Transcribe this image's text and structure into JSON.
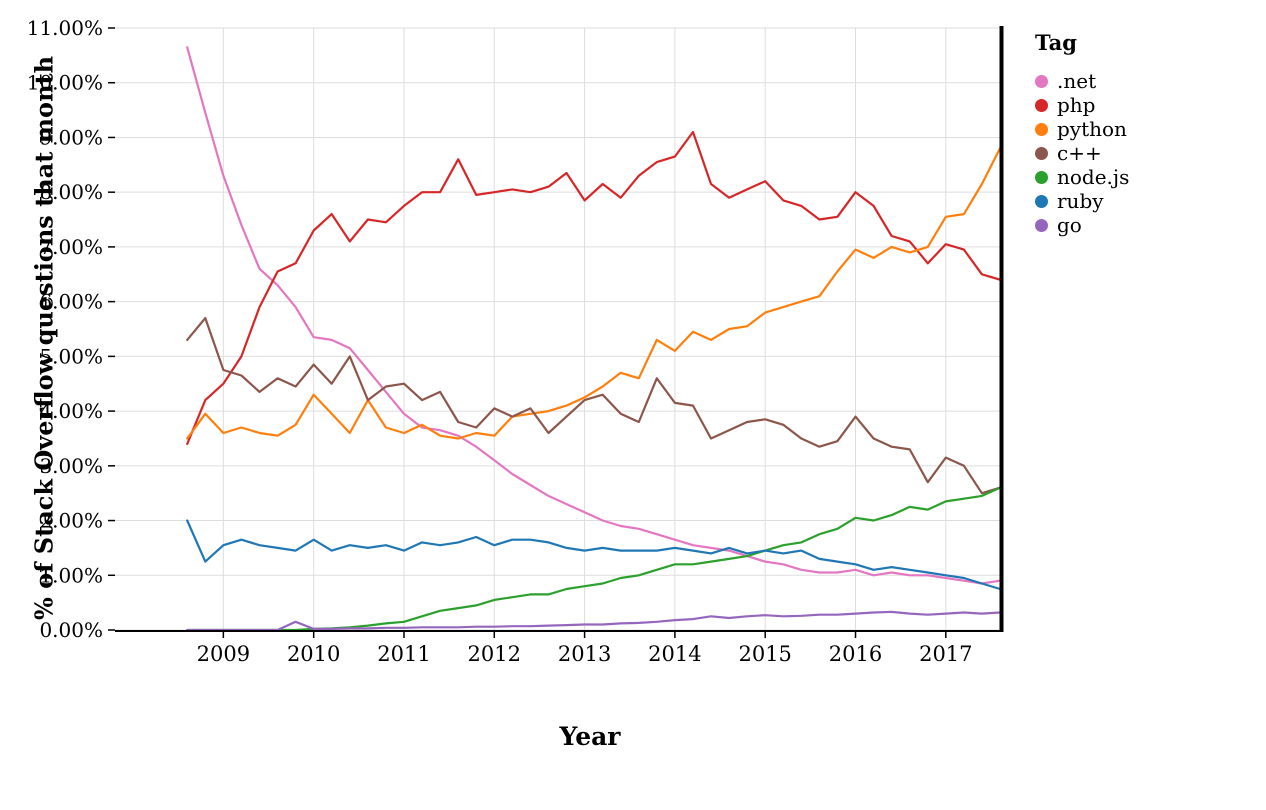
{
  "chart_data": {
    "type": "line",
    "title": "",
    "xlabel": "Year",
    "ylabel": "% of Stack Overflow questions that month",
    "legend_title": "Tag",
    "legend_position": "top-right",
    "grid": true,
    "xlim": [
      2007.8,
      2017.6
    ],
    "ylim": [
      0,
      11
    ],
    "x_ticks": [
      2009,
      2010,
      2011,
      2012,
      2013,
      2014,
      2015,
      2016,
      2017
    ],
    "y_ticks": [
      0,
      1,
      2,
      3,
      4,
      5,
      6,
      7,
      8,
      9,
      10,
      11
    ],
    "y_tick_format": "percent-2dp",
    "x": [
      2008.6,
      2008.8,
      2009.0,
      2009.2,
      2009.4,
      2009.6,
      2009.8,
      2010.0,
      2010.2,
      2010.4,
      2010.6,
      2010.8,
      2011.0,
      2011.2,
      2011.4,
      2011.6,
      2011.8,
      2012.0,
      2012.2,
      2012.4,
      2012.6,
      2012.8,
      2013.0,
      2013.2,
      2013.4,
      2013.6,
      2013.8,
      2014.0,
      2014.2,
      2014.4,
      2014.6,
      2014.8,
      2015.0,
      2015.2,
      2015.4,
      2015.6,
      2015.8,
      2016.0,
      2016.2,
      2016.4,
      2016.6,
      2016.8,
      2017.0,
      2017.2,
      2017.4,
      2017.6
    ],
    "series": [
      {
        "name": ".net",
        "color": "#e377c2",
        "values": [
          10.65,
          9.45,
          8.3,
          7.4,
          6.6,
          6.3,
          5.9,
          5.35,
          5.3,
          5.15,
          4.75,
          4.35,
          3.95,
          3.7,
          3.65,
          3.55,
          3.35,
          3.1,
          2.85,
          2.65,
          2.45,
          2.3,
          2.15,
          2.0,
          1.9,
          1.85,
          1.75,
          1.65,
          1.55,
          1.5,
          1.45,
          1.35,
          1.25,
          1.2,
          1.1,
          1.05,
          1.05,
          1.1,
          1.0,
          1.05,
          1.0,
          1.0,
          0.95,
          0.9,
          0.85,
          0.9
        ]
      },
      {
        "name": "php",
        "color": "#d62728",
        "values": [
          3.4,
          4.2,
          4.5,
          5.0,
          5.9,
          6.55,
          6.7,
          7.3,
          7.6,
          7.1,
          7.5,
          7.45,
          7.75,
          8.0,
          8.0,
          8.6,
          7.95,
          8.0,
          8.05,
          8.0,
          8.1,
          8.35,
          7.85,
          8.15,
          7.9,
          8.3,
          8.55,
          8.65,
          9.1,
          8.15,
          7.9,
          8.05,
          8.2,
          7.85,
          7.75,
          7.5,
          7.55,
          8.0,
          7.75,
          7.2,
          7.1,
          6.7,
          7.05,
          6.95,
          6.5,
          6.4
        ]
      },
      {
        "name": "python",
        "color": "#ff7f0e",
        "values": [
          3.5,
          3.95,
          3.6,
          3.7,
          3.6,
          3.55,
          3.75,
          4.3,
          3.95,
          3.6,
          4.2,
          3.7,
          3.6,
          3.75,
          3.55,
          3.5,
          3.6,
          3.55,
          3.9,
          3.95,
          4.0,
          4.1,
          4.25,
          4.45,
          4.7,
          4.6,
          5.3,
          5.1,
          5.45,
          5.3,
          5.5,
          5.55,
          5.8,
          5.9,
          6.0,
          6.1,
          6.55,
          6.95,
          6.8,
          7.0,
          6.9,
          7.0,
          7.55,
          7.6,
          8.15,
          8.8
        ]
      },
      {
        "name": "c++",
        "color": "#8c564b",
        "values": [
          5.3,
          5.7,
          4.75,
          4.65,
          4.35,
          4.6,
          4.45,
          4.85,
          4.5,
          5.0,
          4.2,
          4.45,
          4.5,
          4.2,
          4.35,
          3.8,
          3.7,
          4.05,
          3.9,
          4.05,
          3.6,
          3.9,
          4.2,
          4.3,
          3.95,
          3.8,
          4.6,
          4.15,
          4.1,
          3.5,
          3.65,
          3.8,
          3.85,
          3.75,
          3.5,
          3.35,
          3.45,
          3.9,
          3.5,
          3.35,
          3.3,
          2.7,
          3.15,
          3.0,
          2.5,
          2.6
        ]
      },
      {
        "name": "node.js",
        "color": "#2ca02c",
        "values": [
          0.0,
          0.0,
          0.0,
          0.0,
          0.0,
          0.0,
          0.0,
          0.02,
          0.03,
          0.05,
          0.08,
          0.12,
          0.15,
          0.25,
          0.35,
          0.4,
          0.45,
          0.55,
          0.6,
          0.65,
          0.65,
          0.75,
          0.8,
          0.85,
          0.95,
          1.0,
          1.1,
          1.2,
          1.2,
          1.25,
          1.3,
          1.35,
          1.45,
          1.55,
          1.6,
          1.75,
          1.85,
          2.05,
          2.0,
          2.1,
          2.25,
          2.2,
          2.35,
          2.4,
          2.45,
          2.6
        ]
      },
      {
        "name": "ruby",
        "color": "#1f77b4",
        "values": [
          2.0,
          1.25,
          1.55,
          1.65,
          1.55,
          1.5,
          1.45,
          1.65,
          1.45,
          1.55,
          1.5,
          1.55,
          1.45,
          1.6,
          1.55,
          1.6,
          1.7,
          1.55,
          1.65,
          1.65,
          1.6,
          1.5,
          1.45,
          1.5,
          1.45,
          1.45,
          1.45,
          1.5,
          1.45,
          1.4,
          1.5,
          1.4,
          1.45,
          1.4,
          1.45,
          1.3,
          1.25,
          1.2,
          1.1,
          1.15,
          1.1,
          1.05,
          1.0,
          0.95,
          0.85,
          0.75
        ]
      },
      {
        "name": "go",
        "color": "#9467bd",
        "values": [
          0.0,
          0.0,
          0.0,
          0.0,
          0.0,
          0.0,
          0.15,
          0.02,
          0.02,
          0.03,
          0.03,
          0.04,
          0.04,
          0.05,
          0.05,
          0.05,
          0.06,
          0.06,
          0.07,
          0.07,
          0.08,
          0.09,
          0.1,
          0.1,
          0.12,
          0.13,
          0.15,
          0.18,
          0.2,
          0.25,
          0.22,
          0.25,
          0.27,
          0.25,
          0.26,
          0.28,
          0.28,
          0.3,
          0.32,
          0.33,
          0.3,
          0.28,
          0.3,
          0.32,
          0.3,
          0.32
        ]
      }
    ]
  }
}
